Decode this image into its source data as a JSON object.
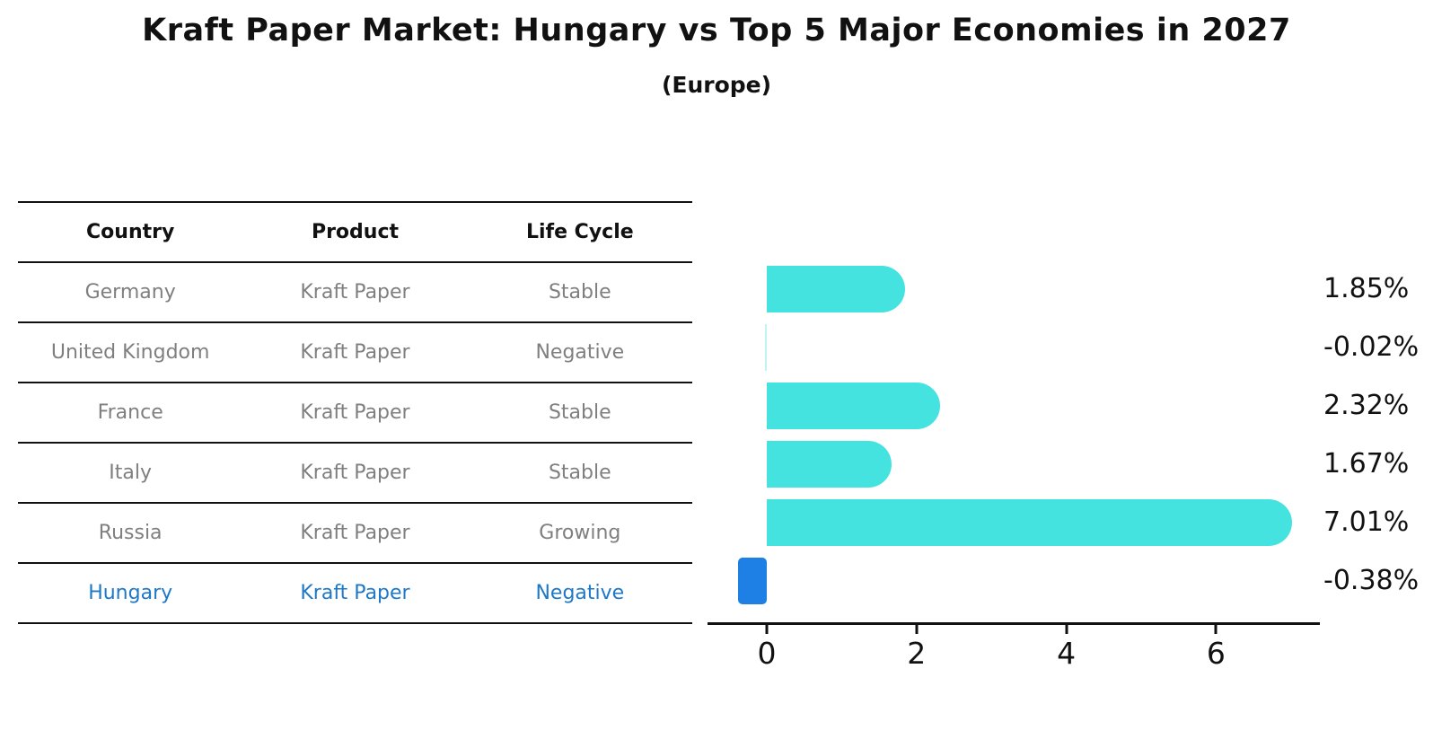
{
  "header": {
    "title": "Kraft Paper Market: Hungary vs Top 5 Major Economies in 2027",
    "subtitle": "(Europe)"
  },
  "table": {
    "columns": [
      "Country",
      "Product",
      "Life Cycle"
    ],
    "rows": [
      {
        "country": "Germany",
        "product": "Kraft Paper",
        "life_cycle": "Stable",
        "highlight": false
      },
      {
        "country": "United Kingdom",
        "product": "Kraft Paper",
        "life_cycle": "Negative",
        "highlight": false
      },
      {
        "country": "France",
        "product": "Kraft Paper",
        "life_cycle": "Stable",
        "highlight": false
      },
      {
        "country": "Italy",
        "product": "Kraft Paper",
        "life_cycle": "Stable",
        "highlight": false
      },
      {
        "country": "Russia",
        "product": "Kraft Paper",
        "life_cycle": "Growing",
        "highlight": false
      },
      {
        "country": "Hungary",
        "product": "Kraft Paper",
        "life_cycle": "Negative",
        "highlight": true
      }
    ],
    "highlight_text_color": "#1d78c8",
    "text_color": "#7f7f7f"
  },
  "chart_data": {
    "type": "bar",
    "orientation": "horizontal",
    "title": "Kraft Paper Market: Hungary vs Top 5 Major Economies in 2027 (Europe)",
    "categories": [
      "Germany",
      "United Kingdom",
      "France",
      "Italy",
      "Russia",
      "Hungary"
    ],
    "values": [
      1.85,
      -0.02,
      2.32,
      1.67,
      7.01,
      -0.38
    ],
    "value_labels": [
      "1.85%",
      "-0.02%",
      "2.32%",
      "1.67%",
      "7.01%",
      "-0.38%"
    ],
    "xticks": [
      0,
      2,
      4,
      6
    ],
    "xtick_labels": [
      "0",
      "2",
      "4",
      "6"
    ],
    "xlim": [
      -0.79,
      7.39
    ],
    "grid": false,
    "bar_color": "#45e3e0",
    "highlight_index": 5,
    "highlight_color": "#1e80e4"
  }
}
